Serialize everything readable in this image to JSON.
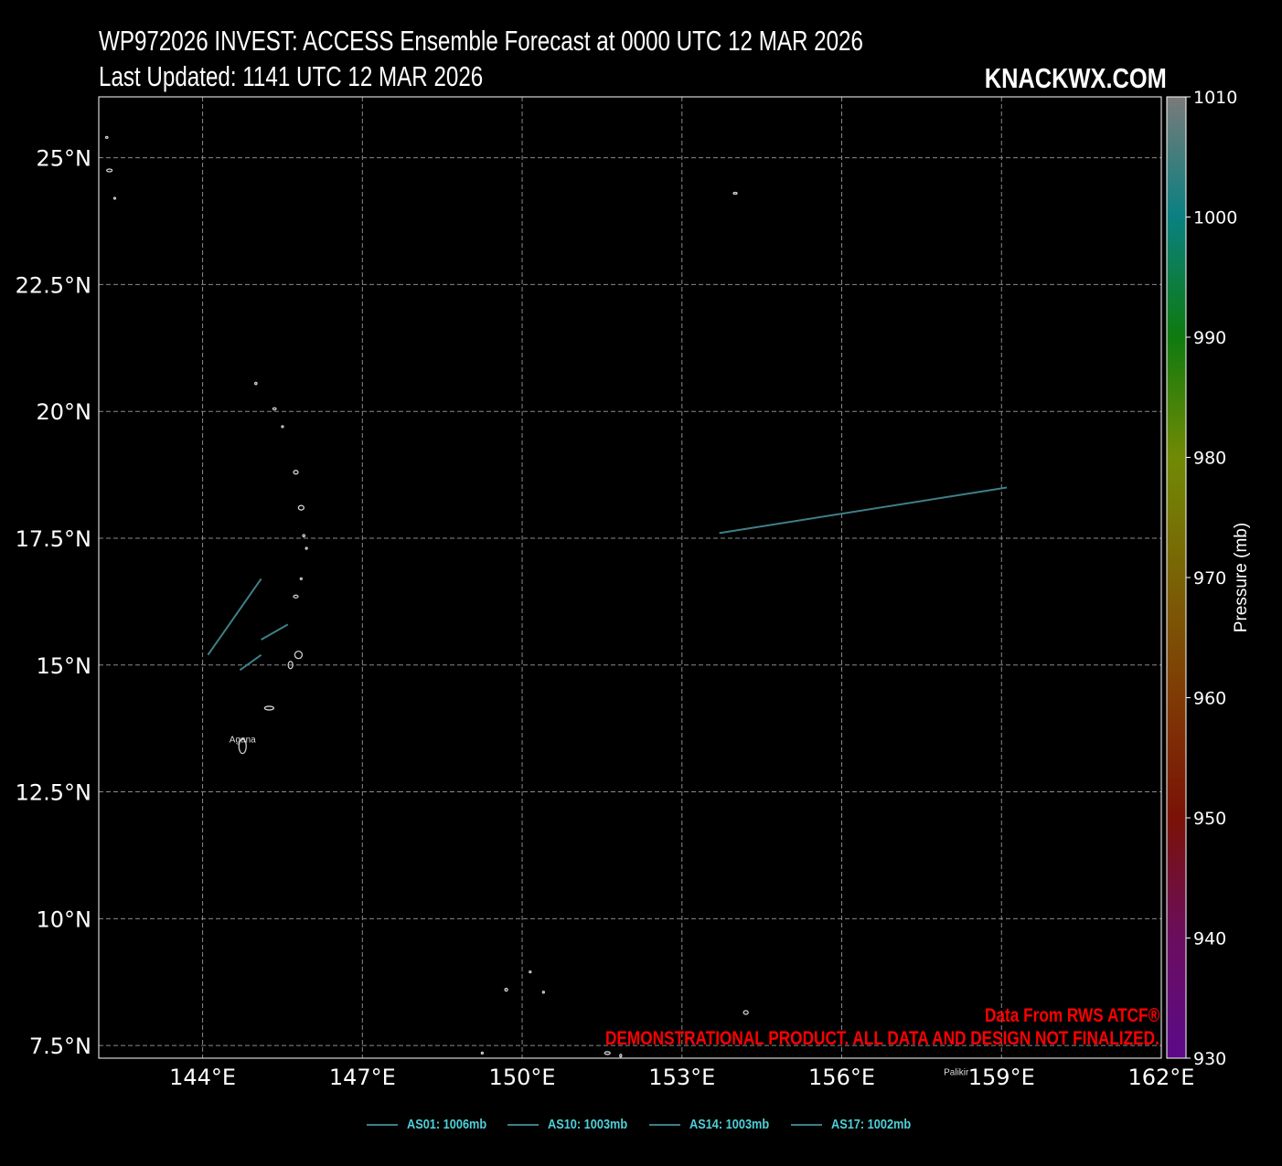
{
  "title_line1": "WP972026 INVEST: ACCESS Ensemble Forecast at 0000 UTC 12 MAR 2026",
  "title_line2": "Last Updated: 1141 UTC 12 MAR 2026",
  "brand": "KNACKWX.COM",
  "source_note": "Data From RWS ATCF®",
  "disclaimer": "DEMONSTRATIONAL PRODUCT. ALL DATA AND DESIGN NOT FINALIZED.",
  "colors": {
    "background": "#000000",
    "coastline": "#cfcfcf",
    "grid": "#8a8a8a",
    "track": "#3f7f88",
    "legend_text": "#4fd0d8",
    "note": "#ff0000"
  },
  "map": {
    "lon_range": [
      142.05,
      162.0
    ],
    "lat_range": [
      7.25,
      26.2
    ],
    "lon_ticks": [
      {
        "value": 144,
        "label": "144°E"
      },
      {
        "value": 147,
        "label": "147°E"
      },
      {
        "value": 150,
        "label": "150°E"
      },
      {
        "value": 153,
        "label": "153°E"
      },
      {
        "value": 156,
        "label": "156°E"
      },
      {
        "value": 159,
        "label": "159°E"
      },
      {
        "value": 162,
        "label": "162°E"
      }
    ],
    "lat_ticks": [
      {
        "value": 25,
        "label": "25°N"
      },
      {
        "value": 22.5,
        "label": "22.5°N"
      },
      {
        "value": 20,
        "label": "20°N"
      },
      {
        "value": 17.5,
        "label": "17.5°N"
      },
      {
        "value": 15,
        "label": "15°N"
      },
      {
        "value": 12.5,
        "label": "12.5°N"
      },
      {
        "value": 10,
        "label": "10°N"
      },
      {
        "value": 7.5,
        "label": "7.5°N"
      }
    ],
    "cities": [
      {
        "name": "Agana",
        "lon": 144.75,
        "lat": 13.47
      },
      {
        "name": "Palikir",
        "lon": 158.15,
        "lat": 6.92
      }
    ],
    "islands": [
      {
        "lon": 142.2,
        "lat": 25.4,
        "rx": 1.2,
        "ry": 1.0
      },
      {
        "lon": 142.25,
        "lat": 24.75,
        "rx": 3.0,
        "ry": 1.5
      },
      {
        "lon": 142.35,
        "lat": 24.2,
        "rx": 1.0,
        "ry": 1.0
      },
      {
        "lon": 154.0,
        "lat": 24.3,
        "rx": 2.0,
        "ry": 1.0
      },
      {
        "lon": 145.0,
        "lat": 20.55,
        "rx": 1.2,
        "ry": 1.2
      },
      {
        "lon": 145.35,
        "lat": 20.05,
        "rx": 1.8,
        "ry": 1.2
      },
      {
        "lon": 145.5,
        "lat": 19.7,
        "rx": 1.0,
        "ry": 1.0
      },
      {
        "lon": 145.75,
        "lat": 18.8,
        "rx": 2.5,
        "ry": 2.0
      },
      {
        "lon": 145.85,
        "lat": 18.1,
        "rx": 3.0,
        "ry": 2.5
      },
      {
        "lon": 145.9,
        "lat": 17.55,
        "rx": 1.2,
        "ry": 1.2
      },
      {
        "lon": 145.95,
        "lat": 17.3,
        "rx": 1.0,
        "ry": 1.0
      },
      {
        "lon": 145.85,
        "lat": 16.7,
        "rx": 1.0,
        "ry": 1.0
      },
      {
        "lon": 145.75,
        "lat": 16.35,
        "rx": 2.5,
        "ry": 1.5
      },
      {
        "lon": 145.8,
        "lat": 15.2,
        "rx": 4.0,
        "ry": 4.0
      },
      {
        "lon": 145.65,
        "lat": 15.0,
        "rx": 2.5,
        "ry": 4.0
      },
      {
        "lon": 145.25,
        "lat": 14.15,
        "rx": 5.0,
        "ry": 2.0
      },
      {
        "lon": 144.75,
        "lat": 13.4,
        "rx": 4.0,
        "ry": 8.0
      },
      {
        "lon": 149.7,
        "lat": 8.6,
        "rx": 1.5,
        "ry": 1.5
      },
      {
        "lon": 150.15,
        "lat": 8.95,
        "rx": 1.0,
        "ry": 1.0
      },
      {
        "lon": 150.4,
        "lat": 8.55,
        "rx": 1.0,
        "ry": 1.0
      },
      {
        "lon": 149.25,
        "lat": 7.35,
        "rx": 1.0,
        "ry": 1.0
      },
      {
        "lon": 151.6,
        "lat": 7.35,
        "rx": 3.0,
        "ry": 1.5
      },
      {
        "lon": 151.85,
        "lat": 7.3,
        "rx": 1.0,
        "ry": 1.5
      },
      {
        "lon": 154.2,
        "lat": 8.15,
        "rx": 2.5,
        "ry": 2.0
      }
    ]
  },
  "tracks": [
    {
      "id": "AS01",
      "points": [
        [
          153.7,
          17.6
        ],
        [
          159.1,
          18.5
        ]
      ]
    },
    {
      "id": "AS10",
      "points": [
        [
          144.1,
          15.2
        ],
        [
          145.1,
          16.7
        ]
      ]
    },
    {
      "id": "AS14",
      "points": [
        [
          145.1,
          15.5
        ],
        [
          145.6,
          15.8
        ]
      ]
    },
    {
      "id": "AS17",
      "points": [
        [
          144.7,
          14.9
        ],
        [
          145.1,
          15.2
        ]
      ]
    }
  ],
  "colorbar": {
    "label": "Pressure (mb)",
    "min": 930,
    "max": 1010,
    "ticks": [
      {
        "value": 1010,
        "label": "1010"
      },
      {
        "value": 1000,
        "label": "1000"
      },
      {
        "value": 990,
        "label": "990"
      },
      {
        "value": 980,
        "label": "980"
      },
      {
        "value": 970,
        "label": "970"
      },
      {
        "value": 960,
        "label": "960"
      },
      {
        "value": 950,
        "label": "950"
      },
      {
        "value": 940,
        "label": "940"
      },
      {
        "value": 930,
        "label": "930"
      }
    ],
    "stops": [
      {
        "value": 930,
        "color": "#5b0a8a"
      },
      {
        "value": 940,
        "color": "#6b0d5e"
      },
      {
        "value": 950,
        "color": "#7a1206"
      },
      {
        "value": 960,
        "color": "#7f3a05"
      },
      {
        "value": 970,
        "color": "#7a6205"
      },
      {
        "value": 980,
        "color": "#708a05"
      },
      {
        "value": 990,
        "color": "#0f7a0f"
      },
      {
        "value": 1000,
        "color": "#0a8080"
      },
      {
        "value": 1010,
        "color": "#7a7a7a"
      }
    ]
  },
  "legend": [
    {
      "label": "AS01: 1006mb"
    },
    {
      "label": "AS10: 1003mb"
    },
    {
      "label": "AS14: 1003mb"
    },
    {
      "label": "AS17: 1002mb"
    }
  ]
}
